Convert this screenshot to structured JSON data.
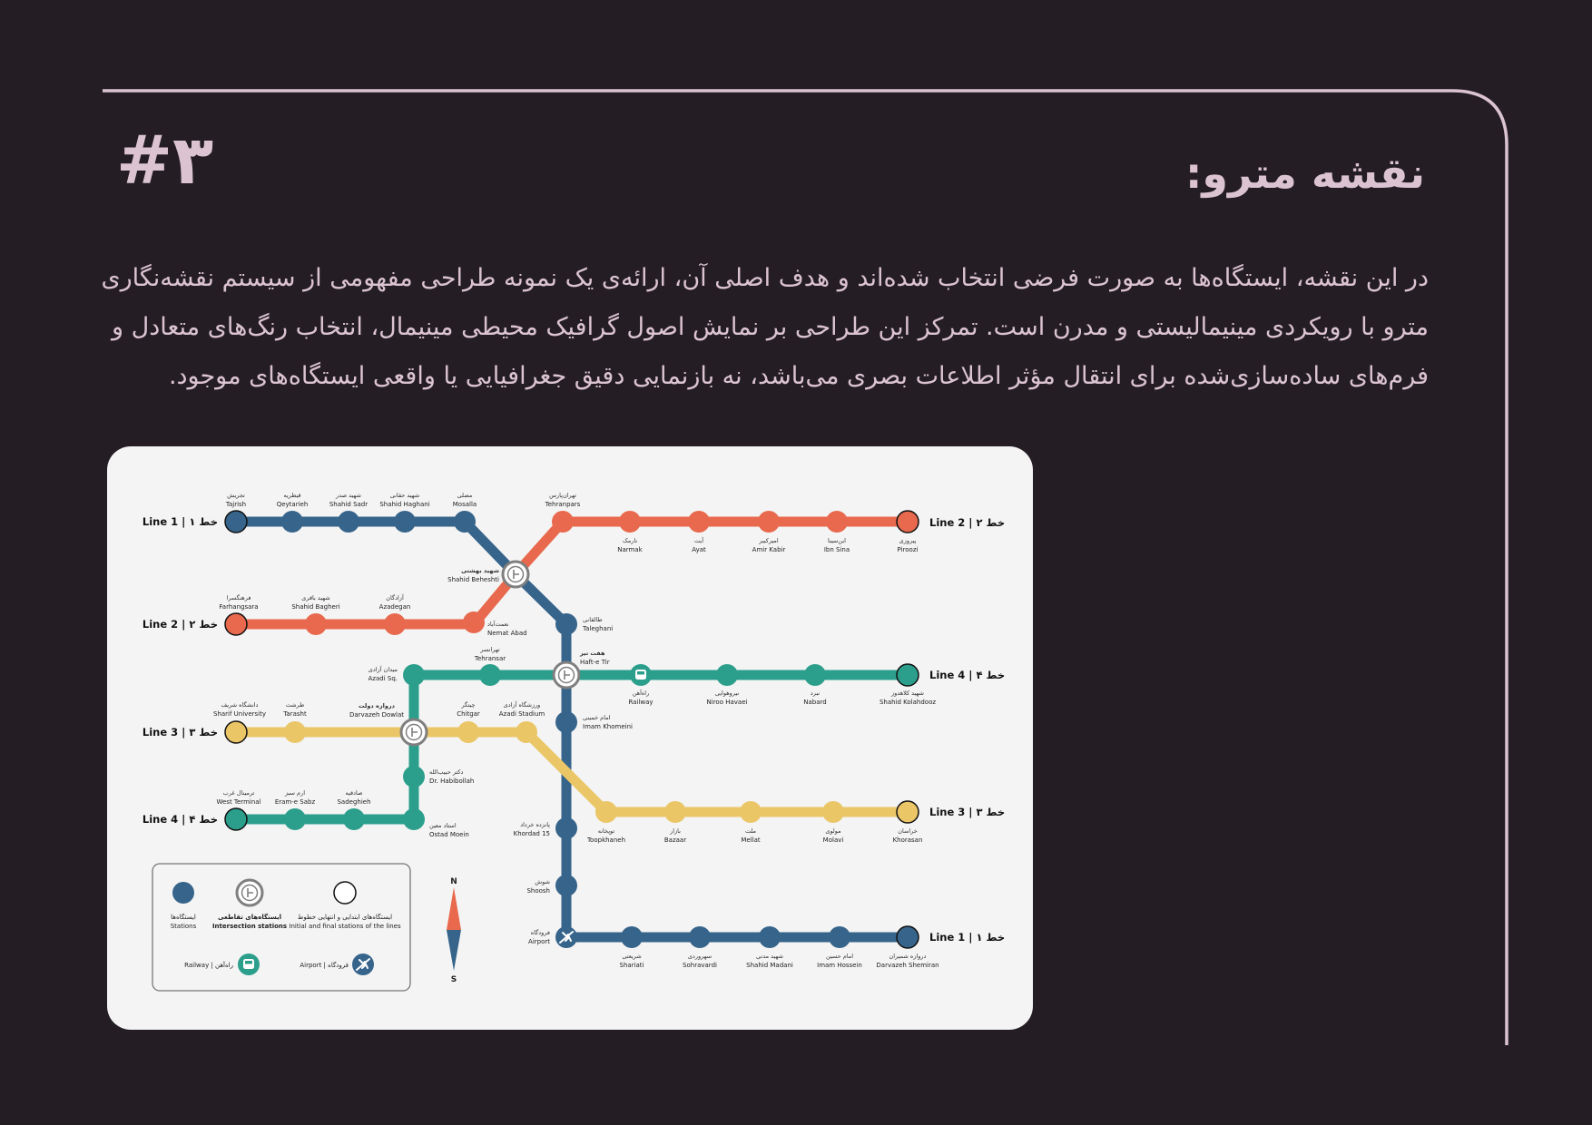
{
  "page": {
    "number": "#۳",
    "title": "نقشه مترو:",
    "intro": "در این نقشه، ایستگاه‌ها به صورت فرضی انتخاب شده‌اند و هدف اصلی آن، ارائه‌ی یک نمونه طراحی مفهومی از سیستم نقشه‌نگاری مترو با رویکردی مینیمالیستی و مدرن است. تمرکز این طراحی بر نمایش اصول گرافیک محیطی مینیمال، انتخاب رنگ‌های متعادل و فرم‌های ساده‌سازی‌شده برای انتقال مؤثر اطلاعات بصری می‌باشد، نه بازنمایی دقیق جغرافیایی یا واقعی ایستگاه‌های موجود."
  },
  "colors": {
    "background": "#241e24",
    "accent": "#dcc3d2",
    "card": "#f4f4f4",
    "line1": "#36648b",
    "line2": "#e8694d",
    "line3": "#ebc667",
    "line4": "#2b9f8c"
  },
  "map": {
    "line_labels": {
      "line1_west": "Line 1 | خط ۱",
      "line1_east": "Line 1 | خط ۱",
      "line2_east": "Line 2 | خط ۲",
      "line2_west": "Line 2 | خط ۲",
      "line3_west": "Line 3 | خط ۳",
      "line3_east": "Line 3 | خط ۳",
      "line4_west": "Line 4 | خط ۴",
      "line4_east": "Line 4 | خط ۴"
    },
    "stations": {
      "tajrish": {
        "fa": "تجریش",
        "en": "Tajrish"
      },
      "qeytarieh": {
        "fa": "قیطریه",
        "en": "Qeytarieh"
      },
      "shahid_sadr": {
        "fa": "شهید صدر",
        "en": "Shahid Sadr"
      },
      "shahid_haghani": {
        "fa": "شهید حقانی",
        "en": "Shahid Haghani"
      },
      "mosalla": {
        "fa": "مصلی",
        "en": "Mosalla"
      },
      "shahid_beheshti": {
        "fa": "شهید بهشتی",
        "en": "Shahid Beheshti"
      },
      "taleghani": {
        "fa": "طالقانی",
        "en": "Taleghani"
      },
      "haft_e_tir": {
        "fa": "هفت تیر",
        "en": "Haft-e Tir"
      },
      "imam_khomeini": {
        "fa": "امام خمینی",
        "en": "Imam Khomeini"
      },
      "khordad_15": {
        "fa": "پانزده خرداد",
        "en": "Khordad 15"
      },
      "shoosh": {
        "fa": "شوش",
        "en": "Shoosh"
      },
      "airport": {
        "fa": "فرودگاه",
        "en": "Airport"
      },
      "shariati": {
        "fa": "شریعتی",
        "en": "Shariati"
      },
      "sohravardi": {
        "fa": "سهروردی",
        "en": "Sohravardi"
      },
      "shahid_madani": {
        "fa": "شهید مدنی",
        "en": "Shahid Madani"
      },
      "imam_hossein": {
        "fa": "امام حسین",
        "en": "Imam Hossein"
      },
      "darvazeh_shemiran": {
        "fa": "دروازه شمیران",
        "en": "Darvazeh Shemiran"
      },
      "tehranpars": {
        "fa": "تهران‌پارس",
        "en": "Tehranpars"
      },
      "narmak": {
        "fa": "نارمک",
        "en": "Narmak"
      },
      "ayat": {
        "fa": "آیت",
        "en": "Ayat"
      },
      "amir_kabir": {
        "fa": "امیرکبیر",
        "en": "Amir Kabir"
      },
      "ibn_sina": {
        "fa": "ابن‌سینا",
        "en": "Ibn Sina"
      },
      "piroozi": {
        "fa": "پیروزی",
        "en": "Piroozi"
      },
      "farhangsara": {
        "fa": "فرهنگسرا",
        "en": "Farhangsara"
      },
      "shahid_bagheri": {
        "fa": "شهید باقری",
        "en": "Shahid Bagheri"
      },
      "azadegan": {
        "fa": "آزادگان",
        "en": "Azadegan"
      },
      "nemat_abad": {
        "fa": "نعمت‌آباد",
        "en": "Nemat Abad"
      },
      "azadi_sq": {
        "fa": "میدان آزادی",
        "en": "Azadi Sq."
      },
      "tehransar": {
        "fa": "تهرانسر",
        "en": "Tehransar"
      },
      "railway": {
        "fa": "راه‌آهن",
        "en": "Railway"
      },
      "niroo_havaei": {
        "fa": "نیروهوایی",
        "en": "Niroo Havaei"
      },
      "nabard": {
        "fa": "نبرد",
        "en": "Nabard"
      },
      "shahid_kolahdooz": {
        "fa": "شهید کلاهدوز",
        "en": "Shahid Kolahdooz"
      },
      "sharif_university": {
        "fa": "دانشگاه شریف",
        "en": "Sharif University"
      },
      "tarasht": {
        "fa": "طرشت",
        "en": "Tarasht"
      },
      "darvazeh_dowlat": {
        "fa": "دروازه دولت",
        "en": "Darvazeh Dowlat"
      },
      "chitgar": {
        "fa": "چیتگر",
        "en": "Chitgar"
      },
      "azadi_stadium": {
        "fa": "ورزشگاه آزادی",
        "en": "Azadi Stadium"
      },
      "dr_habibollah": {
        "fa": "دکتر حبیب‌الله",
        "en": "Dr. Habibollah"
      },
      "toopkhaneh": {
        "fa": "توپخانه",
        "en": "Toopkhaneh"
      },
      "bazaar": {
        "fa": "بازار",
        "en": "Bazaar"
      },
      "mellat": {
        "fa": "ملت",
        "en": "Mellat"
      },
      "molavi": {
        "fa": "مولوی",
        "en": "Molavi"
      },
      "khorasan": {
        "fa": "خراسان",
        "en": "Khorasan"
      },
      "west_terminal": {
        "fa": "ترمینال غرب",
        "en": "West Terminal"
      },
      "eram_e_sabz": {
        "fa": "ارم سبز",
        "en": "Eram-e Sabz"
      },
      "sadeghieh": {
        "fa": "صادقیه",
        "en": "Sadeghieh"
      },
      "ostad_moein": {
        "fa": "استاد معین",
        "en": "Ostad Moein"
      }
    },
    "legend": {
      "stations_fa": "ایستگاه‌ها",
      "stations_en": "Stations",
      "intersection_fa": "ایستگاه‌های تقاطعی",
      "intersection_en": "Intersection stations",
      "terminal_fa": "ایستگاه‌های ابتدایی و انتهایی خطوط",
      "terminal_en": "Initial and final stations of the lines",
      "railway": "Railway | راه‌آهن",
      "airport": "Airport | فرودگاه"
    },
    "compass": {
      "north": "N",
      "south": "S"
    }
  }
}
